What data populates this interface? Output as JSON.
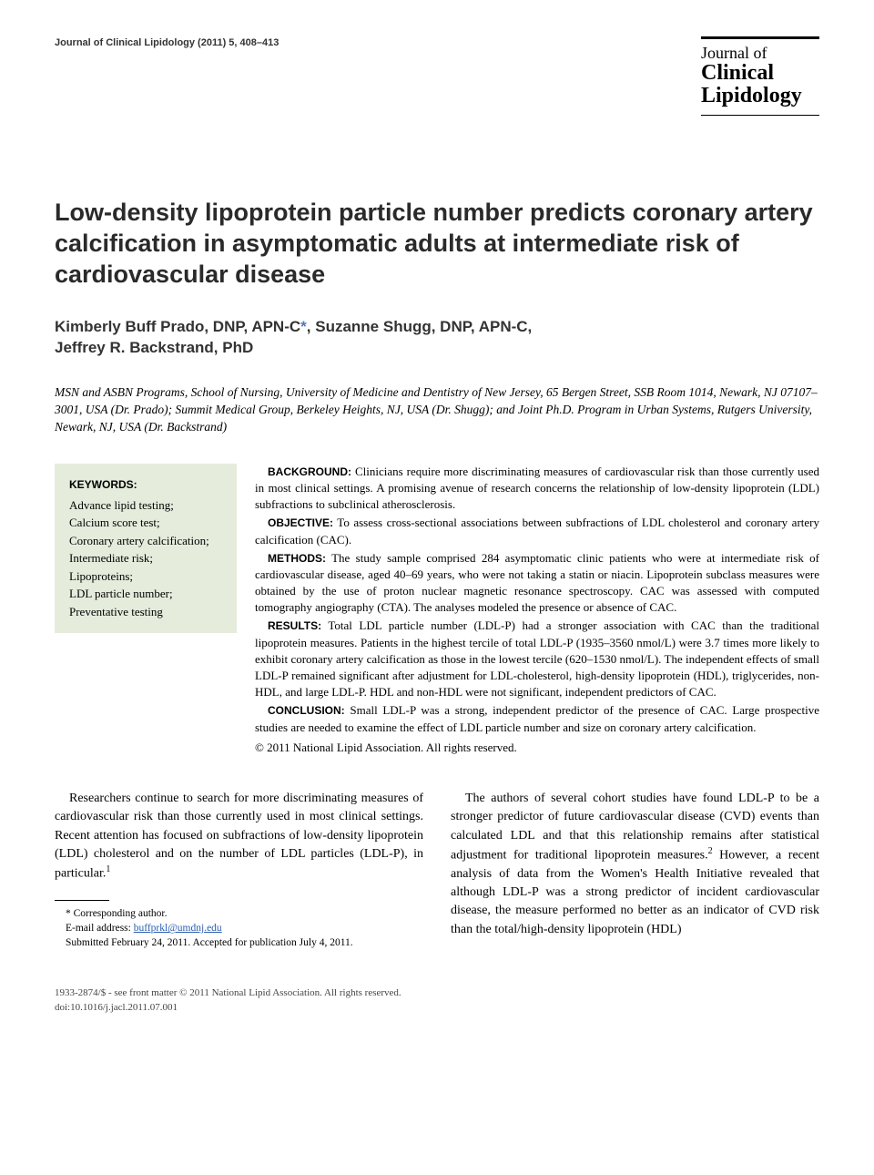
{
  "header": {
    "journal_ref": "Journal of Clinical Lipidology (2011) 5, 408–413",
    "logo_line1": "Journal of",
    "logo_line2": "Clinical",
    "logo_line3": "Lipidology"
  },
  "title": "Low-density lipoprotein particle number predicts coronary artery calcification in asymptomatic adults at intermediate risk of cardiovascular disease",
  "authors": {
    "a1_name": "Kimberly Buff Prado, DNP, APN-C",
    "a1_marker": "*",
    "sep1": ", ",
    "a2_name": "Suzanne Shugg, DNP, APN-C",
    "sep2": ",",
    "a3_name": "Jeffrey R. Backstrand, PhD"
  },
  "affiliations": "MSN and ASBN Programs, School of Nursing, University of Medicine and Dentistry of New Jersey, 65 Bergen Street, SSB Room 1014, Newark, NJ 07107–3001, USA (Dr. Prado); Summit Medical Group, Berkeley Heights, NJ, USA (Dr. Shugg); and Joint Ph.D. Program in Urban Systems, Rutgers University, Newark, NJ, USA (Dr. Backstrand)",
  "keywords": {
    "heading": "KEYWORDS:",
    "items": "Advance lipid testing;\nCalcium score test;\nCoronary artery calcification;\nIntermediate risk;\nLipoproteins;\nLDL particle number;\nPreventative testing"
  },
  "abstract": {
    "background_label": "BACKGROUND:",
    "background": " Clinicians require more discriminating measures of cardiovascular risk than those currently used in most clinical settings. A promising avenue of research concerns the relationship of low-density lipoprotein (LDL) subfractions to subclinical atherosclerosis.",
    "objective_label": "OBJECTIVE:",
    "objective": " To assess cross-sectional associations between subfractions of LDL cholesterol and coronary artery calcification (CAC).",
    "methods_label": "METHODS:",
    "methods": " The study sample comprised 284 asymptomatic clinic patients who were at intermediate risk of cardiovascular disease, aged 40–69 years, who were not taking a statin or niacin. Lipoprotein subclass measures were obtained by the use of proton nuclear magnetic resonance spectroscopy. CAC was assessed with computed tomography angiography (CTA). The analyses modeled the presence or absence of CAC.",
    "results_label": "RESULTS:",
    "results": " Total LDL particle number (LDL-P) had a stronger association with CAC than the traditional lipoprotein measures. Patients in the highest tercile of total LDL-P (1935–3560 nmol/L) were 3.7 times more likely to exhibit coronary artery calcification as those in the lowest tercile (620–1530 nmol/L). The independent effects of small LDL-P remained significant after adjustment for LDL-cholesterol, high-density lipoprotein (HDL), triglycerides, non-HDL, and large LDL-P. HDL and non-HDL were not significant, independent predictors of CAC.",
    "conclusion_label": "CONCLUSION:",
    "conclusion": " Small LDL-P was a strong, independent predictor of the presence of CAC. Large prospective studies are needed to examine the effect of LDL particle number and size on coronary artery calcification.",
    "copyright": "© 2011 National Lipid Association. All rights reserved."
  },
  "body": {
    "para1_a": "Researchers continue to search for more discriminating measures of cardiovascular risk than those currently used in most clinical settings. Recent attention has focused on subfractions of low-density lipoprotein (LDL) cholesterol and on the number of LDL particles (LDL-P), in particular.",
    "para1_ref1": "1",
    "para2_a": "The authors of several cohort studies have found LDL-P to be a stronger predictor of future cardiovascular disease (CVD) events than calculated LDL and that this relationship remains after statistical adjustment for traditional lipoprotein measures.",
    "para2_ref2": "2",
    "para2_b": " However, a recent analysis of data from the Women's Health Initiative revealed that although LDL-P was a strong predictor of incident cardiovascular disease, the measure performed no better as an indicator of CVD risk than the total/high-density lipoprotein (HDL)"
  },
  "footnotes": {
    "corr": "* Corresponding author.",
    "email_label": "E-mail address: ",
    "email": "buffprkl@umdnj.edu",
    "submitted": "Submitted February 24, 2011. Accepted for publication July 4, 2011."
  },
  "footer": {
    "line1": "1933-2874/$ - see front matter © 2011 National Lipid Association. All rights reserved.",
    "line2": "doi:10.1016/j.jacl.2011.07.001"
  },
  "colors": {
    "keywords_bg": "#e5ecdc",
    "link": "#2a5db0",
    "star": "#4a7db5"
  }
}
